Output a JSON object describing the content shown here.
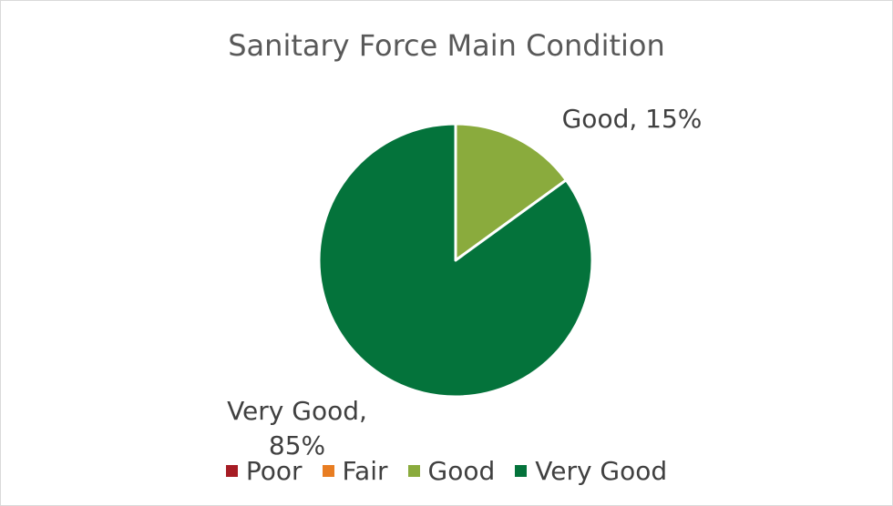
{
  "chart_data": {
    "type": "pie",
    "title": "Sanitary Force Main Condition",
    "categories": [
      "Poor",
      "Fair",
      "Good",
      "Very Good"
    ],
    "values": [
      0,
      0,
      15,
      85
    ],
    "value_labels": [
      null,
      null,
      "Good, 15%",
      "Very Good, 85%"
    ],
    "colors": [
      "#a61c24",
      "#e87d22",
      "#8aab3d",
      "#04733b"
    ],
    "legend": "bottom"
  }
}
